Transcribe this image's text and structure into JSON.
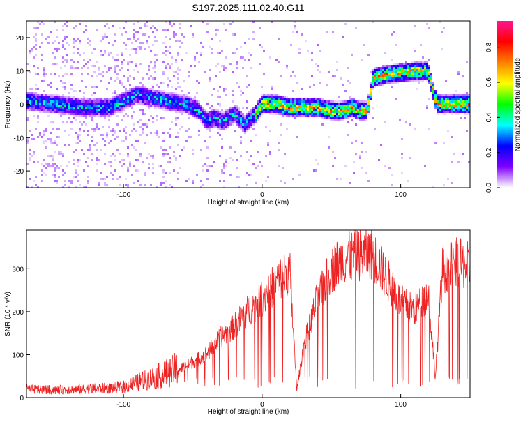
{
  "title": "S197.2025.111.02.40.G11",
  "chart_data": [
    {
      "type": "heatmap",
      "xlabel": "Height of straight line (km)",
      "ylabel": "Frequency (Hz)",
      "xlim": [
        -170,
        150
      ],
      "ylim": [
        -25,
        25
      ],
      "x_ticks": [
        "-100",
        "0",
        "100"
      ],
      "x_tick_values": [
        -100,
        0,
        100
      ],
      "y_ticks": [
        "-20",
        "-10",
        "0",
        "10",
        "20"
      ],
      "y_tick_values": [
        -20,
        -10,
        0,
        10,
        20
      ],
      "colorbar": {
        "label": "Normalized spectral amplitude",
        "range": [
          0,
          0.95
        ],
        "ticks": [
          "0.0",
          "0.2",
          "0.4",
          "0.6",
          "0.8"
        ],
        "tick_values": [
          0,
          0.2,
          0.4,
          0.6,
          0.8
        ],
        "colormap": [
          "#ffffff",
          "#8000ff",
          "#0000ff",
          "#00ffff",
          "#00ff00",
          "#ffff00",
          "#ff8000",
          "#ff0000",
          "#ff1493"
        ]
      },
      "ridge": {
        "x": [
          -170,
          -150,
          -130,
          -110,
          -90,
          -80,
          -70,
          -55,
          -45,
          -40,
          -35,
          -28,
          -20,
          -12,
          -5,
          0,
          10,
          20,
          30,
          40,
          50,
          58,
          65,
          70,
          76,
          80,
          90,
          100,
          110,
          120,
          126,
          128,
          135,
          140,
          150
        ],
        "y": [
          1,
          0,
          -1,
          -1,
          3,
          2,
          1,
          0,
          -2,
          -5,
          -4,
          -5,
          -3,
          -6,
          -3,
          0,
          0,
          -1,
          -1,
          -1,
          -2,
          -2,
          -1,
          -2,
          -2,
          8,
          9,
          9.5,
          10,
          10,
          0,
          0,
          0,
          0,
          0
        ]
      }
    },
    {
      "type": "line",
      "xlabel": "Height of straight line (km)",
      "ylabel": "SNR (10 * v/v)",
      "xlim": [
        -170,
        150
      ],
      "ylim": [
        0,
        390
      ],
      "x_ticks": [
        "-100",
        "0",
        "100"
      ],
      "x_tick_values": [
        -100,
        0,
        100
      ],
      "y_ticks": [
        "0",
        "100",
        "200",
        "300"
      ],
      "y_tick_values": [
        0,
        100,
        200,
        300
      ],
      "color": "#ee2222",
      "envelope": {
        "x": [
          -170,
          -150,
          -130,
          -110,
          -100,
          -90,
          -80,
          -70,
          -60,
          -50,
          -40,
          -30,
          -20,
          -10,
          0,
          10,
          20,
          25,
          30,
          40,
          50,
          55,
          60,
          70,
          80,
          90,
          100,
          110,
          120,
          125,
          130,
          140,
          150
        ],
        "y": [
          20,
          18,
          20,
          22,
          25,
          35,
          45,
          55,
          70,
          90,
          110,
          150,
          180,
          220,
          250,
          290,
          320,
          20,
          130,
          250,
          320,
          340,
          350,
          360,
          360,
          300,
          240,
          220,
          260,
          50,
          320,
          340,
          330
        ]
      }
    }
  ]
}
